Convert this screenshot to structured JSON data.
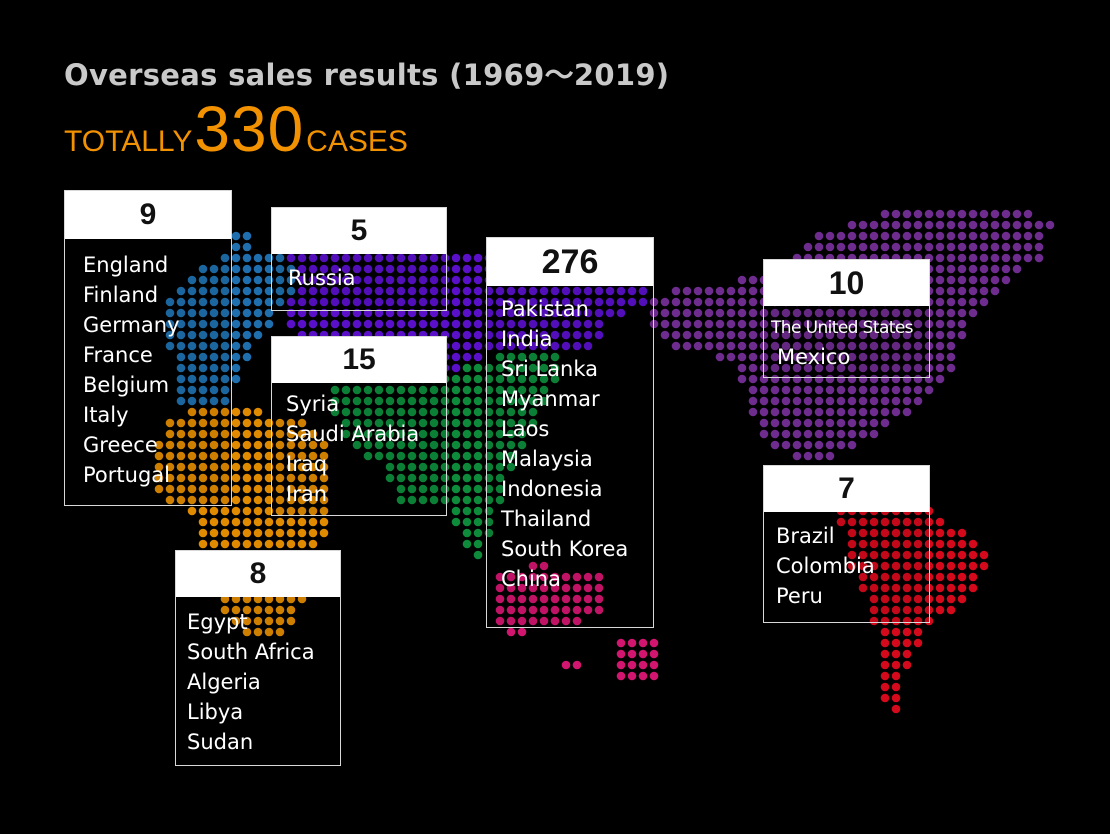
{
  "header": {
    "title": "Overseas sales results (1969～2019)",
    "total_prefix": "TOTALLY",
    "total_number": "330",
    "total_suffix": "CASES"
  },
  "colors": {
    "accent": "#f39200",
    "europe": "#1f6fae",
    "africa": "#e08a00",
    "russia": "#5a10c8",
    "middle_east": "#0d8a3a",
    "asia": "#d2156e",
    "north_america": "#6e2c8e",
    "south_america": "#d4091c"
  },
  "regions": [
    {
      "id": "europe",
      "count": "9",
      "countries": [
        "England",
        "Finland",
        "Germany",
        "France",
        "Belgium",
        "Italy",
        "Greece",
        "Portugal"
      ]
    },
    {
      "id": "russia",
      "count": "5",
      "countries": [
        "Russia"
      ]
    },
    {
      "id": "middle-east",
      "count": "15",
      "countries": [
        "Syria",
        "Saudi Arabia",
        "Iraq",
        "Iran"
      ]
    },
    {
      "id": "africa",
      "count": "8",
      "countries": [
        "Egypt",
        "South Africa",
        "Algeria",
        "Libya",
        "Sudan"
      ]
    },
    {
      "id": "asia",
      "count": "276",
      "countries": [
        "Pakistan",
        "India",
        "Sri Lanka",
        "Myanmar",
        "Laos",
        "Malaysia",
        "Indonesia",
        "Thailand",
        "South Korea",
        "China"
      ]
    },
    {
      "id": "north-america",
      "count": "10",
      "countries": [
        "The United States",
        "Mexico"
      ]
    },
    {
      "id": "south-america",
      "count": "7",
      "countries": [
        "Brazil",
        "Colombia",
        "Peru"
      ]
    }
  ]
}
